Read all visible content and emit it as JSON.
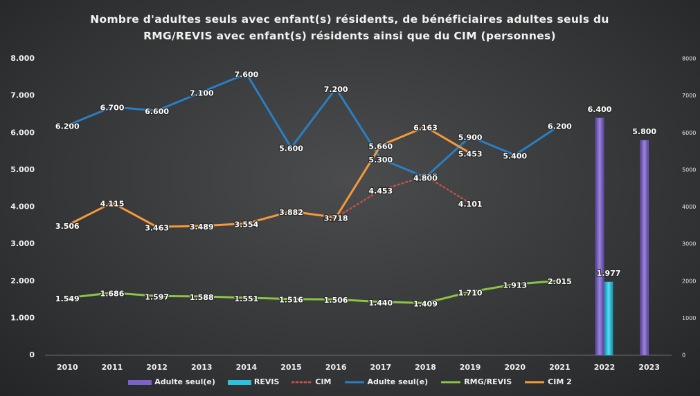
{
  "chart_data": {
    "type": "combo",
    "title": "Nombre d'adultes seuls avec enfant(s) résidents, de bénéficiaires adultes seuls du RMG/REVIS avec enfant(s) résidents ainsi que du CIM (personnes)",
    "categories": [
      "2010",
      "2011",
      "2012",
      "2013",
      "2014",
      "2015",
      "2016",
      "2017",
      "2018",
      "2019",
      "2020",
      "2021",
      "2022",
      "2023"
    ],
    "ylim": [
      0,
      8000
    ],
    "yticks": [
      {
        "value": 0,
        "label": "0"
      },
      {
        "value": 1000,
        "label": "1.000"
      },
      {
        "value": 2000,
        "label": "2.000"
      },
      {
        "value": 3000,
        "label": "3.000"
      },
      {
        "value": 4000,
        "label": "4.000"
      },
      {
        "value": 5000,
        "label": "5.000"
      },
      {
        "value": 6000,
        "label": "6.000"
      },
      {
        "value": 7000,
        "label": "7.000"
      },
      {
        "value": 8000,
        "label": "8.000"
      }
    ],
    "y2lim": [
      0,
      8000
    ],
    "y2ticks": [
      0,
      1000,
      2000,
      3000,
      4000,
      5000,
      6000,
      7000,
      8000
    ],
    "grid": false,
    "legend": "bottom",
    "series": [
      {
        "name": "Adulte seul(e)",
        "type": "bar",
        "axis": "y2",
        "color": "#7b62c6",
        "values": [
          null,
          null,
          null,
          null,
          null,
          null,
          null,
          null,
          null,
          null,
          null,
          null,
          6400,
          5800
        ],
        "value_labels": [
          null,
          null,
          null,
          null,
          null,
          null,
          null,
          null,
          null,
          null,
          null,
          null,
          "6.400",
          "5.800"
        ]
      },
      {
        "name": "REVIS",
        "type": "bar",
        "axis": "y2",
        "color": "#2cc0de",
        "values": [
          null,
          null,
          null,
          null,
          null,
          null,
          null,
          null,
          null,
          null,
          null,
          null,
          1977,
          null
        ],
        "value_labels": [
          null,
          null,
          null,
          null,
          null,
          null,
          null,
          null,
          null,
          null,
          null,
          null,
          "1.977",
          null
        ]
      },
      {
        "name": "CIM",
        "type": "line",
        "style": "dotted",
        "color": "#c0504d",
        "values": [
          null,
          null,
          null,
          null,
          null,
          null,
          3718,
          4453,
          4835,
          4101,
          null,
          null,
          null,
          null
        ],
        "value_labels": [
          null,
          null,
          null,
          null,
          null,
          null,
          "3.718",
          "4.453",
          "4.835",
          "4.101",
          null,
          null,
          null,
          null
        ]
      },
      {
        "name": "Adulte seul(e)",
        "type": "line",
        "style": "solid",
        "color": "#2a7fc4",
        "values": [
          6200,
          6700,
          6600,
          7100,
          7600,
          5600,
          7200,
          5300,
          4800,
          5900,
          5400,
          6200,
          null,
          null
        ],
        "value_labels": [
          "6.200",
          "6.700",
          "6.600",
          "7.100",
          "7.600",
          "5.600",
          "7.200",
          "5.300",
          "4.800",
          "5.900",
          "5.400",
          "6.200",
          null,
          null
        ]
      },
      {
        "name": "RMG/REVIS",
        "type": "line",
        "style": "solid",
        "color": "#8cc444",
        "values": [
          1549,
          1686,
          1597,
          1588,
          1551,
          1516,
          1506,
          1440,
          1409,
          1710,
          1913,
          2015,
          null,
          null
        ],
        "value_labels": [
          "1.549",
          "1.686",
          "1.597",
          "1.588",
          "1.551",
          "1.516",
          "1.506",
          "1.440",
          "1.409",
          "1.710",
          "1.913",
          "2.015",
          null,
          null
        ]
      },
      {
        "name": "CIM 2",
        "type": "line",
        "style": "solid",
        "color": "#f7993a",
        "values": [
          3506,
          4115,
          3463,
          3489,
          3554,
          3882,
          3718,
          5660,
          6163,
          5453,
          null,
          null,
          null,
          null
        ],
        "value_labels": [
          "3.506",
          "4.115",
          "3.463",
          "3.489",
          "3.554",
          "3.882",
          "3.718",
          "5.660",
          "6.163",
          "5.453",
          null,
          null,
          null,
          null
        ]
      }
    ]
  }
}
